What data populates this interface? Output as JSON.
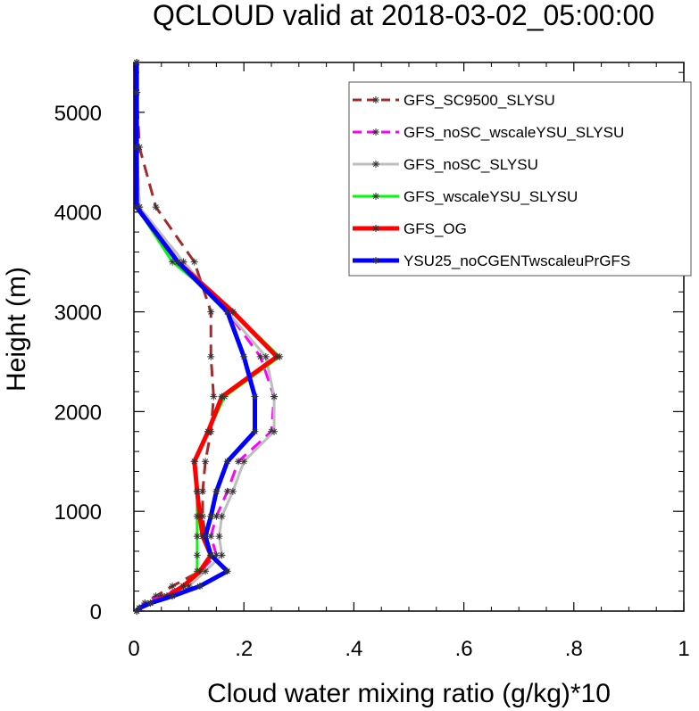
{
  "chart_data": {
    "type": "line",
    "title": "QCLOUD valid at 2018-03-02_05:00:00",
    "xlabel": "Cloud water mixing ratio (g/kg)*10",
    "ylabel": "Height (m)",
    "xlim": [
      0,
      1
    ],
    "ylim": [
      0,
      5500
    ],
    "xticks": [
      0,
      0.2,
      0.4,
      0.6,
      0.8,
      1
    ],
    "xtick_labels": [
      "0",
      ".2",
      ".4",
      ".6",
      ".8",
      "1"
    ],
    "yticks": [
      0,
      1000,
      2000,
      3000,
      4000,
      5000
    ],
    "ytick_labels": [
      "0",
      "1000",
      "2000",
      "3000",
      "4000",
      "5000"
    ],
    "grid": false,
    "legend_position": "top-right",
    "series": [
      {
        "name": "GFS_SC9500_SLYSU",
        "color": "#a52a2a",
        "dash": "dashed",
        "thick": false,
        "points": [
          [
            0.005,
            0
          ],
          [
            0.01,
            30
          ],
          [
            0.02,
            80
          ],
          [
            0.04,
            150
          ],
          [
            0.07,
            250
          ],
          [
            0.12,
            400
          ],
          [
            0.14,
            560
          ],
          [
            0.13,
            750
          ],
          [
            0.125,
            950
          ],
          [
            0.125,
            1200
          ],
          [
            0.13,
            1500
          ],
          [
            0.14,
            1800
          ],
          [
            0.145,
            2150
          ],
          [
            0.14,
            2550
          ],
          [
            0.14,
            3000
          ],
          [
            0.11,
            3500
          ],
          [
            0.04,
            4050
          ],
          [
            0.01,
            4650
          ],
          [
            0.005,
            5200
          ],
          [
            0.005,
            5500
          ]
        ]
      },
      {
        "name": "GFS_noSC_wscaleYSU_SLYSU",
        "color": "#ff00ff",
        "dash": "dashed",
        "thick": false,
        "points": [
          [
            0.005,
            0
          ],
          [
            0.01,
            30
          ],
          [
            0.02,
            80
          ],
          [
            0.05,
            150
          ],
          [
            0.09,
            250
          ],
          [
            0.12,
            400
          ],
          [
            0.15,
            560
          ],
          [
            0.14,
            750
          ],
          [
            0.15,
            950
          ],
          [
            0.17,
            1200
          ],
          [
            0.19,
            1500
          ],
          [
            0.25,
            1800
          ],
          [
            0.255,
            2150
          ],
          [
            0.23,
            2550
          ],
          [
            0.17,
            3000
          ],
          [
            0.09,
            3500
          ],
          [
            0.01,
            4050
          ],
          [
            0.005,
            4650
          ],
          [
            0.005,
            5200
          ],
          [
            0.005,
            5500
          ]
        ]
      },
      {
        "name": "GFS_noSC_SLYSU",
        "color": "#bebebe",
        "dash": "solid",
        "thick": false,
        "points": [
          [
            0.005,
            0
          ],
          [
            0.01,
            30
          ],
          [
            0.03,
            80
          ],
          [
            0.06,
            150
          ],
          [
            0.1,
            250
          ],
          [
            0.13,
            400
          ],
          [
            0.16,
            560
          ],
          [
            0.155,
            750
          ],
          [
            0.16,
            950
          ],
          [
            0.18,
            1200
          ],
          [
            0.2,
            1500
          ],
          [
            0.255,
            1800
          ],
          [
            0.255,
            2150
          ],
          [
            0.24,
            2550
          ],
          [
            0.17,
            3000
          ],
          [
            0.09,
            3500
          ],
          [
            0.01,
            4050
          ],
          [
            0.005,
            4650
          ],
          [
            0.005,
            5200
          ],
          [
            0.005,
            5500
          ]
        ]
      },
      {
        "name": "GFS_wscaleYSU_SLYSU",
        "color": "#00ff00",
        "dash": "solid",
        "thick": false,
        "points": [
          [
            0.005,
            0
          ],
          [
            0.01,
            30
          ],
          [
            0.03,
            80
          ],
          [
            0.06,
            150
          ],
          [
            0.09,
            250
          ],
          [
            0.115,
            400
          ],
          [
            0.115,
            560
          ],
          [
            0.115,
            750
          ],
          [
            0.115,
            950
          ],
          [
            0.115,
            1200
          ],
          [
            0.11,
            1500
          ],
          [
            0.135,
            1800
          ],
          [
            0.165,
            2150
          ],
          [
            0.265,
            2550
          ],
          [
            0.18,
            3000
          ],
          [
            0.07,
            3500
          ],
          [
            0.005,
            4050
          ],
          [
            0.005,
            4650
          ],
          [
            0.005,
            5200
          ],
          [
            0.005,
            5500
          ]
        ]
      },
      {
        "name": "GFS_OG",
        "color": "#ff0000",
        "dash": "solid",
        "thick": true,
        "points": [
          [
            0.005,
            0
          ],
          [
            0.01,
            30
          ],
          [
            0.03,
            80
          ],
          [
            0.06,
            150
          ],
          [
            0.09,
            250
          ],
          [
            0.12,
            400
          ],
          [
            0.14,
            560
          ],
          [
            0.125,
            750
          ],
          [
            0.12,
            950
          ],
          [
            0.115,
            1200
          ],
          [
            0.11,
            1500
          ],
          [
            0.135,
            1800
          ],
          [
            0.16,
            2150
          ],
          [
            0.26,
            2550
          ],
          [
            0.18,
            3000
          ],
          [
            0.08,
            3500
          ],
          [
            0.005,
            4050
          ],
          [
            0.005,
            4650
          ],
          [
            0.005,
            5200
          ],
          [
            0.005,
            5500
          ]
        ]
      },
      {
        "name": "YSU25_noCGENTwscaleuPrGFS",
        "color": "#0000ff",
        "dash": "solid",
        "thick": true,
        "points": [
          [
            0.005,
            0
          ],
          [
            0.01,
            30
          ],
          [
            0.03,
            80
          ],
          [
            0.07,
            150
          ],
          [
            0.12,
            250
          ],
          [
            0.17,
            400
          ],
          [
            0.14,
            560
          ],
          [
            0.13,
            750
          ],
          [
            0.14,
            950
          ],
          [
            0.15,
            1200
          ],
          [
            0.17,
            1500
          ],
          [
            0.22,
            1800
          ],
          [
            0.22,
            2150
          ],
          [
            0.2,
            2550
          ],
          [
            0.17,
            3000
          ],
          [
            0.08,
            3500
          ],
          [
            0.005,
            4050
          ],
          [
            0.005,
            4650
          ],
          [
            0.005,
            5200
          ],
          [
            0.005,
            5500
          ]
        ]
      }
    ]
  }
}
